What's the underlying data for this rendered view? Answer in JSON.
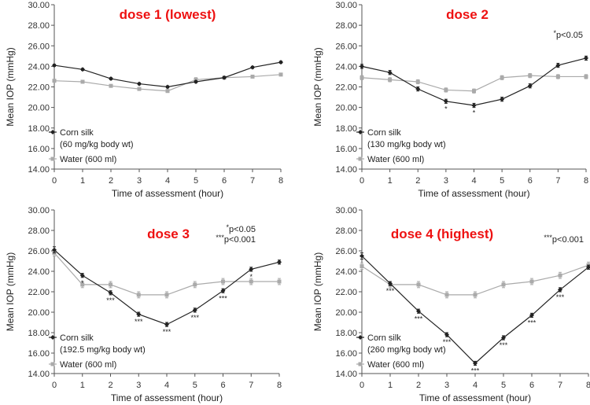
{
  "chart_data": [
    {
      "type": "line",
      "title": "dose 1 (lowest)",
      "title_color": "#ee1111",
      "xlabel": "Time of assessment (hour)",
      "ylabel": "Mean IOP (mmHg)",
      "x": [
        0,
        1,
        2,
        3,
        4,
        5,
        6,
        7,
        8
      ],
      "xticks": [
        "0",
        "1",
        "2",
        "3",
        "4",
        "5",
        "6",
        "7",
        "8"
      ],
      "ylim": [
        14,
        30
      ],
      "yticks": [
        "14.00",
        "16.00",
        "18.00",
        "20.00",
        "22.00",
        "24.00",
        "26.00",
        "28.00",
        "30.00"
      ],
      "annotations": [],
      "series": [
        {
          "name": "Corn silk",
          "name_line2": "(60 mg/kg body wt)",
          "color": "#222222",
          "marker": "diamond",
          "values": [
            24.1,
            23.7,
            22.8,
            22.3,
            22.0,
            22.5,
            22.9,
            23.9,
            24.4
          ],
          "err": [
            0.1,
            0.1,
            0.1,
            0.1,
            0.1,
            0.1,
            0.1,
            0.1,
            0.1
          ],
          "sig": [
            "",
            "",
            "",
            "",
            "",
            "",
            "",
            "",
            ""
          ]
        },
        {
          "name": "Water (600 ml)",
          "name_line2": "",
          "color": "#aaaaaa",
          "marker": "square",
          "values": [
            22.6,
            22.5,
            22.1,
            21.8,
            21.6,
            22.7,
            22.9,
            23.0,
            23.2
          ],
          "err": [
            0.1,
            0.1,
            0.1,
            0.1,
            0.1,
            0.2,
            0.1,
            0.1,
            0.1
          ],
          "sig": [
            "",
            "",
            "",
            "",
            "",
            "",
            "",
            "",
            ""
          ]
        }
      ]
    },
    {
      "type": "line",
      "title": "dose 2",
      "title_color": "#ee1111",
      "xlabel": "Time of assessment (hour)",
      "ylabel": "Mean IOP (mmHg)",
      "x": [
        0,
        1,
        2,
        3,
        4,
        5,
        6,
        7,
        8
      ],
      "xticks": [
        "0",
        "1",
        "2",
        "3",
        "4",
        "5",
        "6",
        "7",
        "8"
      ],
      "ylim": [
        14,
        30
      ],
      "yticks": [
        "14.00",
        "16.00",
        "18.00",
        "20.00",
        "22.00",
        "24.00",
        "26.00",
        "28.00",
        "30.00"
      ],
      "annotations": [
        {
          "sig": "*",
          "text": "p<0.05"
        }
      ],
      "series": [
        {
          "name": "Corn silk",
          "name_line2": "(130 mg/kg body wt)",
          "color": "#222222",
          "marker": "diamond",
          "values": [
            24.0,
            23.4,
            21.8,
            20.6,
            20.2,
            20.8,
            22.1,
            24.1,
            24.8
          ],
          "err": [
            0.2,
            0.2,
            0.2,
            0.2,
            0.2,
            0.2,
            0.2,
            0.2,
            0.2
          ],
          "sig": [
            "",
            "",
            "",
            "*",
            "*",
            "",
            "",
            "",
            ""
          ]
        },
        {
          "name": "Water (600 ml)",
          "name_line2": "",
          "color": "#aaaaaa",
          "marker": "square",
          "values": [
            22.9,
            22.7,
            22.5,
            21.7,
            21.6,
            22.9,
            23.1,
            23.0,
            23.0
          ],
          "err": [
            0.2,
            0.2,
            0.2,
            0.2,
            0.2,
            0.2,
            0.2,
            0.2,
            0.2
          ],
          "sig": [
            "",
            "",
            "",
            "",
            "",
            "",
            "",
            "",
            ""
          ]
        }
      ]
    },
    {
      "type": "line",
      "title": "dose 3",
      "title_color": "#ee1111",
      "xlabel": "Time of assessment (hour)",
      "ylabel": "Mean IOP (mmHg)",
      "x": [
        0,
        1,
        2,
        3,
        4,
        5,
        6,
        7,
        8
      ],
      "xticks": [
        "0",
        "1",
        "2",
        "3",
        "4",
        "5",
        "6",
        "7",
        "8"
      ],
      "ylim": [
        14,
        30
      ],
      "yticks": [
        "14.00",
        "16.00",
        "18.00",
        "20.00",
        "22.00",
        "24.00",
        "26.00",
        "28.00",
        "30.00"
      ],
      "annotations": [
        {
          "sig": "*",
          "text": "p<0.05"
        },
        {
          "sig": "***",
          "text": "p<0.001"
        }
      ],
      "series": [
        {
          "name": "Corn silk",
          "name_line2": "(192.5 mg/kg body wt)",
          "color": "#222222",
          "marker": "diamond",
          "values": [
            26.1,
            23.6,
            21.9,
            19.8,
            18.8,
            20.2,
            22.1,
            24.2,
            24.9
          ],
          "err": [
            0.3,
            0.2,
            0.2,
            0.2,
            0.2,
            0.2,
            0.2,
            0.2,
            0.2
          ],
          "sig": [
            "",
            "*",
            "***",
            "***",
            "***",
            "***",
            "***",
            "*",
            ""
          ]
        },
        {
          "name": "Water (600 ml)",
          "name_line2": "",
          "color": "#aaaaaa",
          "marker": "square",
          "values": [
            25.8,
            22.7,
            22.7,
            21.7,
            21.7,
            22.7,
            23.0,
            23.0,
            23.0
          ],
          "err": [
            0.3,
            0.3,
            0.3,
            0.3,
            0.3,
            0.3,
            0.3,
            0.3,
            0.3
          ],
          "sig": [
            "",
            "",
            "",
            "",
            "",
            "",
            "",
            "",
            ""
          ]
        }
      ]
    },
    {
      "type": "line",
      "title": "dose 4 (highest)",
      "title_color": "#ee1111",
      "xlabel": "Time of assessment (hour)",
      "ylabel": "Mean IOP (mmHg)",
      "x": [
        0,
        1,
        2,
        3,
        4,
        5,
        6,
        7,
        8
      ],
      "xticks": [
        "0",
        "1",
        "2",
        "3",
        "4",
        "5",
        "6",
        "7",
        "8"
      ],
      "ylim": [
        14,
        30
      ],
      "yticks": [
        "14.00",
        "16.00",
        "18.00",
        "20.00",
        "22.00",
        "24.00",
        "26.00",
        "28.00",
        "30.00"
      ],
      "annotations": [
        {
          "sig": "***",
          "text": "p<0.001"
        }
      ],
      "series": [
        {
          "name": "Corn silk",
          "name_line2": "(260 mg/kg body wt)",
          "color": "#222222",
          "marker": "diamond",
          "values": [
            25.5,
            22.8,
            20.1,
            17.8,
            15.0,
            17.5,
            19.7,
            22.2,
            24.4
          ],
          "err": [
            0.3,
            0.2,
            0.2,
            0.2,
            0.2,
            0.2,
            0.2,
            0.2,
            0.2
          ],
          "sig": [
            "",
            "***",
            "***",
            "***",
            "***",
            "***",
            "***",
            "***",
            ""
          ]
        },
        {
          "name": "Water (600 ml)",
          "name_line2": "",
          "color": "#aaaaaa",
          "marker": "square",
          "values": [
            24.5,
            22.7,
            22.7,
            21.7,
            21.7,
            22.7,
            23.0,
            23.6,
            24.6
          ],
          "err": [
            0.3,
            0.3,
            0.3,
            0.3,
            0.3,
            0.3,
            0.3,
            0.3,
            0.3
          ],
          "sig": [
            "",
            "",
            "",
            "",
            "",
            "",
            "",
            "",
            ""
          ]
        }
      ]
    }
  ]
}
